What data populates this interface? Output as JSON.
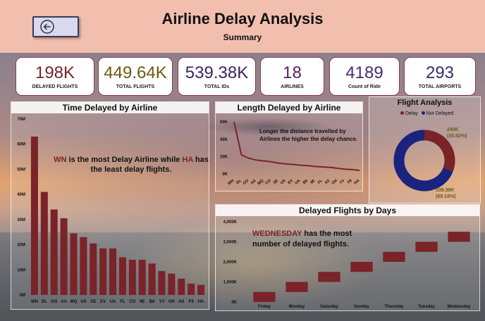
{
  "header": {
    "title": "Airline Delay Analysis",
    "subtitle": "Summary",
    "back_icon": "back-arrow-icon"
  },
  "kpis": [
    {
      "value": "198K",
      "label": "DELAYED FLIGHTS",
      "color": "#7a2328"
    },
    {
      "value": "449.64K",
      "label": "TOTAL FLIGHTS",
      "color": "#6b5a12"
    },
    {
      "value": "539.38K",
      "label": "TOTAL IDs",
      "color": "#3a2560"
    },
    {
      "value": "18",
      "label": "AIRLINES",
      "color": "#5a1f5a"
    },
    {
      "value": "4189",
      "label": "Count of Ride",
      "color": "#4a2a70"
    },
    {
      "value": "293",
      "label": "TOTAL AIRPORTS",
      "color": "#3a2a6a"
    }
  ],
  "panels": {
    "time_delayed": {
      "title": "Time Delayed by Airline",
      "annotation_pre": "WN",
      "annotation_mid": " is the most Delay Airline while ",
      "annotation_hl2": "HA",
      "annotation_post": " has the least delay flights."
    },
    "length_delayed": {
      "title": "Length Delayed by Airline",
      "annotation": "Longer the distance travelled by Airlines the higher the delay chance."
    },
    "flight_analysis": {
      "title": "Flight Analysis",
      "legend_delay": "Delay",
      "legend_not_delayed": "Not Delayed",
      "label_delay_value": "240K",
      "label_delay_pct": "(30.82%)",
      "label_not_value": "539.38K",
      "label_not_pct": "(69.18%)"
    },
    "delayed_days": {
      "title": "Delayed Flights by Days",
      "annotation_hl": "WEDNESDAY",
      "annotation_rest": " has the most number of delayed flights."
    }
  },
  "chart_data": [
    {
      "type": "bar",
      "name": "time_delayed_by_airline",
      "categories": [
        "WN",
        "DL",
        "OO",
        "AA",
        "MQ",
        "US",
        "XE",
        "EV",
        "UA",
        "FL",
        "CO",
        "9E",
        "B6",
        "YV",
        "OH",
        "AS",
        "F9",
        "HA"
      ],
      "values": [
        63000000,
        41000000,
        34000000,
        30500000,
        24500000,
        23000000,
        20500000,
        18500000,
        18500000,
        15000000,
        14000000,
        14000000,
        12500000,
        9500000,
        8500000,
        6500000,
        4500000,
        4000000
      ],
      "yticks": [
        "0M",
        "10M",
        "20M",
        "30M",
        "40M",
        "50M",
        "60M",
        "70M"
      ],
      "ylim": [
        0,
        70000000
      ],
      "color": "#7a2328"
    },
    {
      "type": "line",
      "name": "length_delayed_by_airline",
      "categories": [
        "WN",
        "DL",
        "OO",
        "AA",
        "MQ",
        "CO",
        "XE",
        "US",
        "EV",
        "UA",
        "B6",
        "9E",
        "FL",
        "AS",
        "OH",
        "YV",
        "F9",
        "HA"
      ],
      "values": [
        60000,
        22000,
        18000,
        16000,
        15000,
        14000,
        12500,
        11500,
        11000,
        10000,
        9500,
        8500,
        8000,
        7500,
        6500,
        5500,
        5000,
        4000
      ],
      "yticks": [
        "0K",
        "20K",
        "40K",
        "60K"
      ],
      "ylim": [
        0,
        65000
      ],
      "color": "#7a2328"
    },
    {
      "type": "pie",
      "name": "flight_analysis",
      "labels": [
        "Delay",
        "Not Delayed"
      ],
      "values": [
        240000,
        539380
      ],
      "percents": [
        30.82,
        69.18
      ],
      "colors": [
        "#7a2328",
        "#1a237e"
      ],
      "legend": "top"
    },
    {
      "type": "bar",
      "name": "delayed_flights_by_days",
      "subtype": "waterfall",
      "categories": [
        "Friday",
        "Monday",
        "Saturday",
        "Sunday",
        "Thursday",
        "Tuesday",
        "Wednesday"
      ],
      "ranges": [
        [
          0,
          500000
        ],
        [
          500000,
          1000000
        ],
        [
          1000000,
          1500000
        ],
        [
          1500000,
          2000000
        ],
        [
          2000000,
          2500000
        ],
        [
          2500000,
          3000000
        ],
        [
          3000000,
          3500000
        ]
      ],
      "yticks": [
        "0K",
        "1,000K",
        "2,000K",
        "3,000K",
        "4,000K"
      ],
      "ylim": [
        0,
        4000000
      ],
      "color": "#7a2328"
    }
  ]
}
